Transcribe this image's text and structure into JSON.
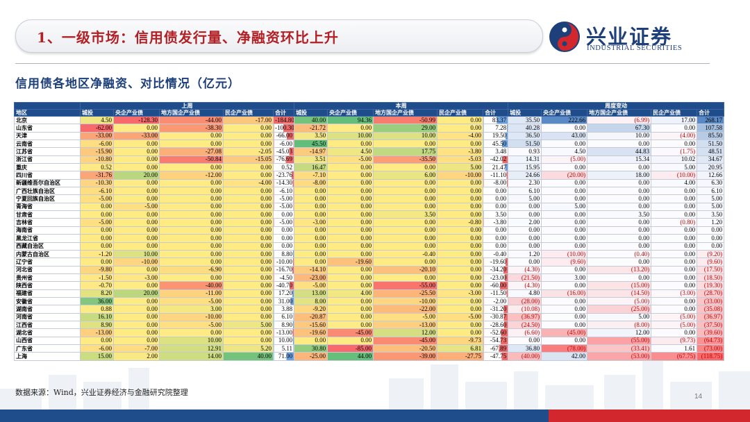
{
  "header": {
    "title": "1、一级市场：信用债发行量、净融资环比上升"
  },
  "logo": {
    "cn": "兴业证券",
    "en": "INDUSTRIAL SECURITIES"
  },
  "subtitle": "信用债各地区净融资、对比情况（亿元）",
  "table": {
    "groups": [
      "上周",
      "本周",
      "周度变动"
    ],
    "columns": [
      "地区",
      "城投",
      "央企产业债",
      "地方国企产业债",
      "民企产业债",
      "合计",
      "城投",
      "央企产业债",
      "地方国企产业债",
      "民企产业债",
      "合计",
      "城投",
      "央企产业债",
      "地方国企产业债",
      "民企产业债",
      "合计"
    ],
    "rows": [
      [
        "北京",
        "4.50",
        "-128.30",
        "-44.00",
        "-17.00",
        "-184.80",
        "40.00",
        "94.36",
        "-50.99",
        "0.00",
        "83.37",
        "35.50",
        "222.66",
        "(6.99)",
        "17.00",
        "268.17"
      ],
      [
        "山东省",
        "-62.00",
        "0.00",
        "-38.30",
        "0.00",
        "-100.30",
        "-21.72",
        "0.00",
        "29.00",
        "0.00",
        "7.28",
        "40.28",
        "0.00",
        "67.30",
        "0.00",
        "107.58"
      ],
      [
        "天津",
        "-33.00",
        "-33.00",
        "0.00",
        "0.00",
        "-66.00",
        "3.50",
        "10.00",
        "10.00",
        "-4.00",
        "19.50",
        "36.50",
        "43.00",
        "10.00",
        "(4.00)",
        "85.50"
      ],
      [
        "云南省",
        "-6.00",
        "0.00",
        "0.00",
        "0.00",
        "-6.00",
        "45.50",
        "0.00",
        "0.00",
        "0.00",
        "45.50",
        "51.50",
        "0.00",
        "0.00",
        "0.00",
        "51.50"
      ],
      [
        "江苏省",
        "-15.90",
        "0.00",
        "-27.08",
        "-2.05",
        "-45.03",
        "-14.97",
        "4.50",
        "17.75",
        "-3.80",
        "3.48",
        "0.93",
        "4.50",
        "44.83",
        "(1.75)",
        "48.51"
      ],
      [
        "浙江省",
        "-10.80",
        "0.00",
        "-50.84",
        "-15.05",
        "-76.69",
        "3.51",
        "-5.00",
        "-35.50",
        "-5.03",
        "-42.02",
        "14.31",
        "(5.00)",
        "15.34",
        "10.02",
        "34.67"
      ],
      [
        "重庆",
        "0.52",
        "0.00",
        "0.00",
        "0.00",
        "0.52",
        "16.47",
        "0.00",
        "0.00",
        "5.00",
        "21.47",
        "15.95",
        "0.00",
        "0.00",
        "5.00",
        "20.95"
      ],
      [
        "四川省",
        "-31.76",
        "20.00",
        "-12.00",
        "0.00",
        "-23.76",
        "-7.10",
        "0.00",
        "6.00",
        "-10.00",
        "-11.10",
        "24.66",
        "(20.00)",
        "18.00",
        "(10.00)",
        "12.66"
      ],
      [
        "新疆维吾尔自治区",
        "-10.30",
        "0.00",
        "0.00",
        "-4.00",
        "-14.30",
        "-8.00",
        "0.00",
        "0.00",
        "0.00",
        "-8.00",
        "2.30",
        "0.00",
        "0.00",
        "4.00",
        "6.30"
      ],
      [
        "广西壮族自治区",
        "-6.10",
        "0.00",
        "0.00",
        "0.00",
        "-6.10",
        "0.00",
        "0.00",
        "0.00",
        "0.00",
        "0.00",
        "6.10",
        "0.00",
        "0.00",
        "0.00",
        "6.10"
      ],
      [
        "宁夏回族自治区",
        "-5.00",
        "0.00",
        "0.00",
        "0.00",
        "-5.00",
        "0.00",
        "0.00",
        "0.00",
        "0.00",
        "0.00",
        "5.00",
        "0.00",
        "0.00",
        "0.00",
        "5.00"
      ],
      [
        "青海省",
        "0.00",
        "-5.00",
        "0.00",
        "0.00",
        "-5.00",
        "0.00",
        "0.00",
        "0.00",
        "0.00",
        "0.00",
        "0.00",
        "5.00",
        "0.00",
        "0.00",
        "5.00"
      ],
      [
        "甘肃省",
        "0.00",
        "0.00",
        "0.00",
        "0.00",
        "0.00",
        "0.00",
        "0.00",
        "3.50",
        "0.00",
        "3.50",
        "0.00",
        "0.00",
        "3.50",
        "0.00",
        "3.50"
      ],
      [
        "吉林省",
        "-5.00",
        "0.00",
        "0.00",
        "0.00",
        "-5.00",
        "-3.00",
        "0.00",
        "0.00",
        "-0.80",
        "-3.80",
        "2.00",
        "0.00",
        "0.00",
        "(0.80)",
        "1.20"
      ],
      [
        "海南省",
        "0.00",
        "0.00",
        "0.00",
        "0.00",
        "0.00",
        "0.00",
        "0.00",
        "0.00",
        "0.00",
        "0.00",
        "0.00",
        "0.00",
        "0.00",
        "0.00",
        "0.00"
      ],
      [
        "黑龙江省",
        "0.00",
        "0.00",
        "0.00",
        "0.00",
        "0.00",
        "0.00",
        "0.00",
        "0.00",
        "0.00",
        "0.00",
        "0.00",
        "0.00",
        "0.00",
        "0.00",
        "0.00"
      ],
      [
        "西藏自治区",
        "0.00",
        "0.00",
        "0.00",
        "0.00",
        "0.00",
        "0.00",
        "0.00",
        "0.00",
        "0.00",
        "0.00",
        "0.00",
        "0.00",
        "0.00",
        "0.00",
        "0.00"
      ],
      [
        "内蒙古自治区",
        "-1.20",
        "10.00",
        "0.00",
        "0.00",
        "8.80",
        "0.00",
        "0.00",
        "-0.40",
        "0.00",
        "-0.40",
        "1.20",
        "(10.00)",
        "(0.40)",
        "0.00",
        "(9.20)"
      ],
      [
        "辽宁省",
        "0.00",
        "-10.00",
        "0.00",
        "0.00",
        "-10.00",
        "0.00",
        "-19.60",
        "0.00",
        "0.00",
        "-19.60",
        "0.00",
        "(9.60)",
        "0.00",
        "0.00",
        "(9.60)"
      ],
      [
        "河北省",
        "-9.80",
        "0.00",
        "-6.90",
        "0.00",
        "-16.70",
        "-14.10",
        "0.00",
        "-20.10",
        "0.00",
        "-34.20",
        "(4.30)",
        "0.00",
        "(13.20)",
        "0.00",
        "(17.50)"
      ],
      [
        "贵州省",
        "-1.50",
        "-3.00",
        "0.00",
        "0.00",
        "-4.50",
        "-23.00",
        "0.00",
        "0.00",
        "0.00",
        "-23.00",
        "(21.50)",
        "3.00",
        "0.00",
        "0.00",
        "(18.50)"
      ],
      [
        "陕西省",
        "-0.70",
        "0.00",
        "-40.00",
        "0.00",
        "-40.70",
        "-5.00",
        "0.00",
        "-55.00",
        "0.00",
        "-60.00",
        "(4.30)",
        "0.00",
        "(15.00)",
        "0.00",
        "(19.30)"
      ],
      [
        "福建省",
        "8.20",
        "20.00",
        "-11.00",
        "0.00",
        "17.20",
        "13.00",
        "4.00",
        "-25.50",
        "-3.00",
        "-11.50",
        "4.80",
        "(16.00)",
        "(14.50)",
        "(3.00)",
        "(28.70)"
      ],
      [
        "安徽省",
        "36.00",
        "0.00",
        "-5.00",
        "0.00",
        "31.00",
        "8.00",
        "0.00",
        "-10.00",
        "0.00",
        "-2.00",
        "(28.00)",
        "0.00",
        "(5.00)",
        "0.00",
        "(33.00)"
      ],
      [
        "湖南省",
        "0.88",
        "0.00",
        "3.00",
        "0.00",
        "3.88",
        "-9.20",
        "0.00",
        "-22.00",
        "0.00",
        "-31.20",
        "(10.08)",
        "0.00",
        "(25.00)",
        "0.00",
        "(35.08)"
      ],
      [
        "河南省",
        "16.10",
        "0.00",
        "-10.00",
        "0.00",
        "6.10",
        "-20.87",
        "0.00",
        "-5.00",
        "-5.00",
        "-30.87",
        "(36.97)",
        "0.00",
        "5.00",
        "(5.00)",
        "(36.97)"
      ],
      [
        "江西省",
        "8.90",
        "0.00",
        "-5.00",
        "5.00",
        "8.90",
        "-15.60",
        "0.00",
        "-13.00",
        "0.00",
        "-28.60",
        "(24.50)",
        "0.00",
        "(8.00)",
        "(5.00)",
        "(37.50)"
      ],
      [
        "湖北省",
        "-13.00",
        "0.00",
        "0.00",
        "0.00",
        "-13.00",
        "-19.60",
        "-45.00",
        "12.00",
        "0.00",
        "-52.60",
        "(6.60)",
        "(45.00)",
        "12.00",
        "0.00",
        "(39.60)"
      ],
      [
        "山西省",
        "0.00",
        "0.00",
        "10.00",
        "0.00",
        "10.00",
        "0.00",
        "0.00",
        "-45.00",
        "-9.73",
        "-54.73",
        "0.00",
        "0.00",
        "(55.00)",
        "(9.73)",
        "(64.73)"
      ],
      [
        "广东省",
        "-6.00",
        "-7.00",
        "12.91",
        "5.20",
        "5.11",
        "30.80",
        "-85.00",
        "-20.50",
        "6.81",
        "-67.89",
        "36.80",
        "(78.00)",
        "(33.41)",
        "1.61",
        "(73.00)"
      ],
      [
        "上海",
        "15.00",
        "2.00",
        "14.00",
        "40.00",
        "71.00",
        "-25.00",
        "44.00",
        "-39.00",
        "-27.75",
        "-47.75",
        "(40.00)",
        "42.00",
        "(53.00)",
        "(67.75)",
        "(118.75)"
      ]
    ]
  },
  "footer": {
    "source": "数据来源：Wind，兴业证券经济与金融研究院整理",
    "page": "14"
  }
}
